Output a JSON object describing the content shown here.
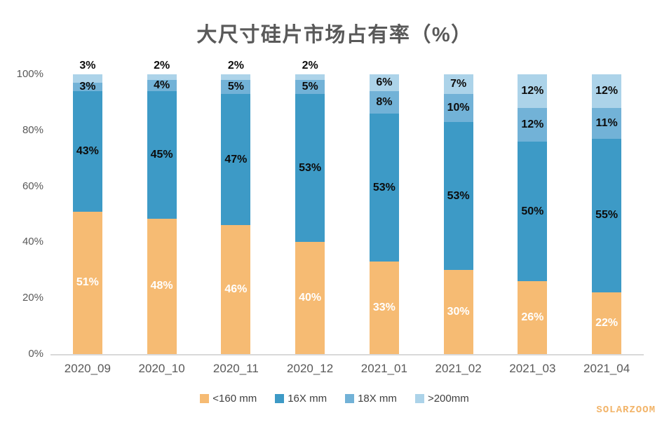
{
  "watermark": "SOLARZOOM",
  "colors": {
    "title": "#595959",
    "axis_line": "#D9D9D9",
    "tick_label": "#595959",
    "legend_text": "#404040",
    "watermark": "#F2B469"
  },
  "y_axis": {
    "ticks": [
      {
        "label": "100%",
        "value": 100
      },
      {
        "label": "80%",
        "value": 80
      },
      {
        "label": "60%",
        "value": 60
      },
      {
        "label": "40%",
        "value": 40
      },
      {
        "label": "20%",
        "value": 20
      },
      {
        "label": "0%",
        "value": 0
      }
    ]
  },
  "chart_data": {
    "type": "bar",
    "stacked": true,
    "title": "大尺寸硅片市场占有率（%）",
    "categories": [
      "2020_09",
      "2020_10",
      "2020_11",
      "2020_12",
      "2021_01",
      "2021_02",
      "2021_03",
      "2021_04"
    ],
    "series": [
      {
        "name": "<160 mm",
        "color": "#F6BB73",
        "label_color": "#FFFFFF",
        "values": [
          51,
          48,
          46,
          40,
          33,
          30,
          26,
          22
        ]
      },
      {
        "name": "16X mm",
        "color": "#3D9AC6",
        "label_color": "#0D0D0D",
        "values": [
          43,
          45,
          47,
          53,
          53,
          53,
          50,
          55
        ]
      },
      {
        "name": "18X mm",
        "color": "#72B2D7",
        "label_color": "#0D0D0D",
        "values": [
          3,
          4,
          5,
          5,
          8,
          10,
          12,
          11
        ]
      },
      {
        "name": ">200mm",
        "color": "#ACD3E9",
        "label_color": "#0D0D0D",
        "values": [
          3,
          2,
          2,
          2,
          6,
          7,
          12,
          12
        ]
      }
    ],
    "ylim": [
      0,
      100
    ],
    "unit": "%",
    "grid": false,
    "legend_position": "bottom"
  }
}
